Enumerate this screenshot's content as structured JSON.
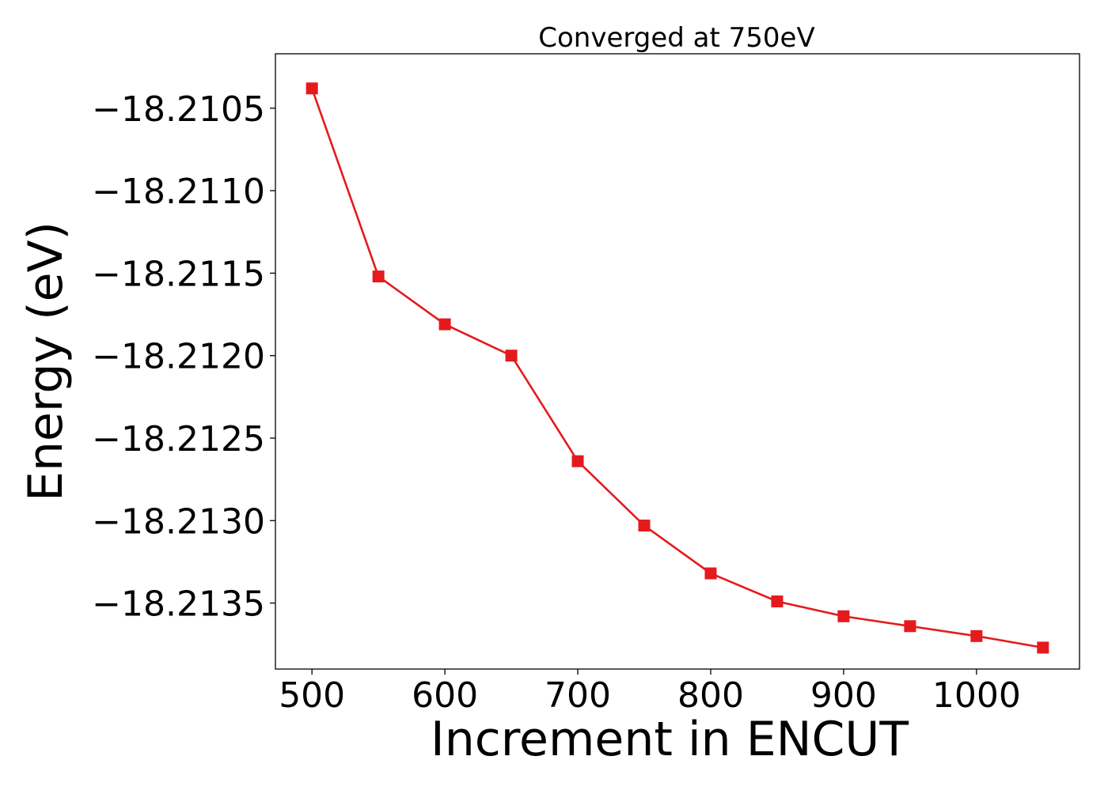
{
  "chart_data": {
    "type": "line",
    "title": "Converged at 750eV",
    "xlabel": "Increment in ENCUT",
    "ylabel": "Energy (eV)",
    "xlim": [
      472.5,
      1077.5
    ],
    "ylim": [
      -18.2139,
      -18.21017
    ],
    "xticks": [
      500,
      600,
      700,
      800,
      900,
      1000
    ],
    "yticks": [
      -18.2105,
      -18.211,
      -18.2115,
      -18.212,
      -18.2125,
      -18.213,
      -18.2135
    ],
    "ytick_labels": [
      "−18.2105",
      "−18.2110",
      "−18.2115",
      "−18.2120",
      "−18.2125",
      "−18.2130",
      "−18.2135"
    ],
    "grid": false,
    "legend": "none",
    "series": [
      {
        "color": "#e41a1c",
        "marker": "square",
        "x": [
          500,
          550,
          600,
          650,
          700,
          750,
          800,
          850,
          900,
          950,
          1000,
          1050
        ],
        "y": [
          -18.21038,
          -18.21152,
          -18.21181,
          -18.212,
          -18.21264,
          -18.21303,
          -18.21332,
          -18.21349,
          -18.21358,
          -18.21364,
          -18.2137,
          -18.21377
        ]
      }
    ]
  }
}
